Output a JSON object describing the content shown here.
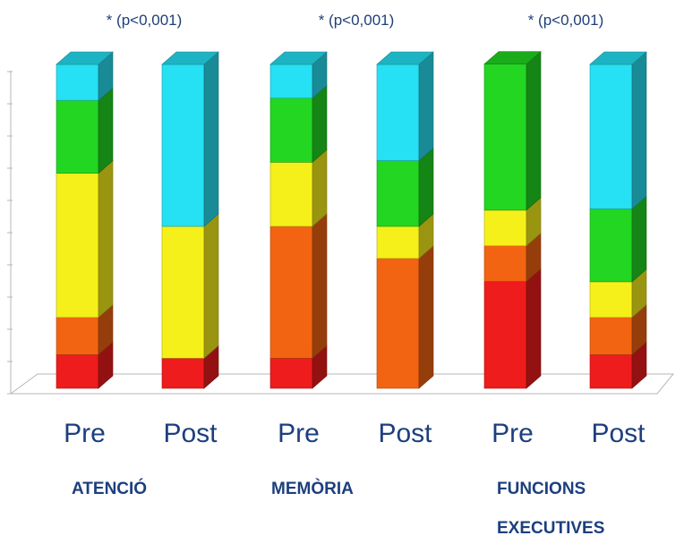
{
  "chart_data": {
    "type": "bar",
    "stacked": true,
    "style": "3d-stacked-percent",
    "grid": false,
    "legend": "none",
    "ylim": [
      0,
      100
    ],
    "categories": [
      "Pre",
      "Post",
      "Pre",
      "Post",
      "Pre",
      "Post"
    ],
    "groups": [
      {
        "label": "ATENCIÓ",
        "lines": [
          "ATENCIÓ"
        ],
        "annotation": "* (p<0,001)"
      },
      {
        "label": "MEMÒRIA",
        "lines": [
          "MEMÒRIA"
        ],
        "annotation": "* (p<0,001)"
      },
      {
        "label": "FUNCIONS EXECUTIVES",
        "lines": [
          "FUNCIONS",
          "EXECUTIVES"
        ],
        "annotation": "* (p<0,001)"
      }
    ],
    "series": [
      {
        "color": "#ee1c1c",
        "values": [
          10.4,
          9.3,
          9.3,
          0,
          33.0,
          10.4
        ]
      },
      {
        "color": "#f26412",
        "values": [
          11.5,
          0,
          40.7,
          40.1,
          11.0,
          11.5
        ]
      },
      {
        "color": "#f6f01a",
        "values": [
          44.5,
          40.7,
          19.8,
          9.9,
          11.0,
          11.0
        ]
      },
      {
        "color": "#22d622",
        "values": [
          22.5,
          0,
          19.8,
          20.3,
          45.1,
          22.5
        ]
      },
      {
        "color": "#26e0f4",
        "values": [
          11.1,
          50.0,
          10.4,
          29.7,
          0,
          44.6
        ]
      }
    ]
  }
}
